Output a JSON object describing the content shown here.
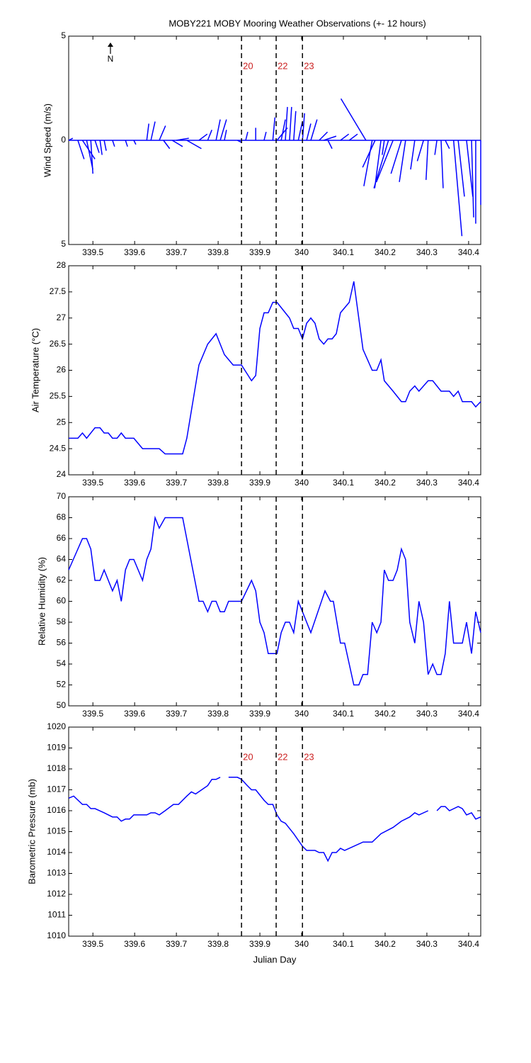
{
  "chart_data": [
    {
      "type": "stick",
      "title": "MOBY221 MOBY Mooring Weather Observations (+- 12 hours)",
      "y_label": "Wind Speed (m/s)",
      "north_label": "N",
      "x": [
        339.442,
        339.464,
        339.475,
        339.485,
        339.495,
        339.505,
        339.517,
        339.527,
        339.547,
        339.578,
        339.598,
        339.629,
        339.639,
        339.659,
        339.669,
        339.69,
        339.7,
        339.725,
        339.754,
        339.775,
        339.795,
        339.805,
        339.815,
        339.846,
        339.866,
        339.89,
        339.91,
        339.931,
        339.941,
        339.951,
        339.961,
        339.971,
        339.981,
        339.992,
        340.002,
        340.012,
        340.022,
        340.042,
        340.053,
        340.063,
        340.093,
        340.114,
        340.154,
        340.169,
        340.176,
        340.19,
        340.198,
        340.208,
        340.219,
        340.239,
        340.249,
        340.271,
        340.292,
        340.303,
        340.324,
        340.334,
        340.344,
        340.364,
        340.375,
        340.395,
        340.407,
        340.417,
        340.429
      ],
      "u": [
        0.2,
        0.3,
        0.6,
        0.3,
        0.1,
        0.2,
        0.1,
        0.1,
        0.1,
        0.1,
        0.1,
        0.1,
        0.2,
        0.3,
        0.3,
        0.5,
        0.6,
        0.7,
        0.4,
        0.2,
        0.2,
        0.3,
        0.1,
        0.2,
        0.1,
        0,
        0.1,
        0.1,
        0.5,
        0.2,
        0.1,
        0.1,
        0.1,
        0.2,
        0.1,
        0.2,
        0.3,
        0.4,
        0.6,
        0.2,
        0.4,
        0.4,
        -1.2,
        -0.4,
        -0.6,
        -0.3,
        -0.1,
        -0.7,
        -0.8,
        -0.5,
        -0.3,
        -0.2,
        -0.3,
        -0.1,
        -0.1,
        0.1,
        0.2,
        0.4,
        0.3,
        0.3,
        0.1,
        0,
        0
      ],
      "values": [
        0.1,
        -0.9,
        -0.9,
        -1.4,
        -1.6,
        -0.6,
        -0.7,
        -0.5,
        -0.3,
        -0.3,
        -0.2,
        0.8,
        0.9,
        0.7,
        -0.4,
        -0.3,
        0.1,
        -0.4,
        0.3,
        0.5,
        1.0,
        1.0,
        0.5,
        -0.1,
        0.4,
        0.6,
        0.4,
        1.1,
        0.6,
        1.0,
        1.6,
        1.6,
        1.4,
        0.9,
        1.3,
        0.8,
        1.0,
        0.4,
        0.2,
        -0.4,
        0.3,
        0.3,
        2.0,
        -2.2,
        -1.3,
        -2.3,
        -0.7,
        -2.3,
        -2.0,
        -1.6,
        -2.0,
        -1.4,
        -1.0,
        -1.9,
        -0.7,
        -2.3,
        -0.4,
        -4.6,
        -2.7,
        -2.7,
        -3.7,
        -4.0,
        -3.1
      ],
      "color": "#0000ff",
      "xlim": [
        339.442,
        340.429
      ],
      "xticks": [
        339.5,
        339.6,
        339.7,
        339.8,
        339.9,
        340,
        340.1,
        340.2,
        340.3,
        340.4
      ],
      "ylim": [
        -5,
        5
      ],
      "yticks": [
        {
          "value": -5,
          "label": "5"
        },
        0,
        {
          "value": 5,
          "label": "5"
        }
      ],
      "markers": [
        339.856,
        339.939,
        340.002
      ],
      "marker_labels": [
        "20",
        "22",
        "23"
      ],
      "marker_label_color": "#cc2222"
    },
    {
      "type": "line",
      "y_label": "Air Temperature (°C)",
      "x": [
        339.442,
        339.464,
        339.475,
        339.485,
        339.505,
        339.517,
        339.527,
        339.537,
        339.547,
        339.558,
        339.568,
        339.578,
        339.598,
        339.619,
        339.659,
        339.673,
        339.715,
        339.725,
        339.754,
        339.775,
        339.795,
        339.815,
        339.836,
        339.856,
        339.88,
        339.89,
        339.9,
        339.91,
        339.92,
        339.931,
        339.941,
        339.951,
        339.971,
        339.981,
        339.992,
        340.002,
        340.012,
        340.022,
        340.032,
        340.042,
        340.053,
        340.063,
        340.073,
        340.083,
        340.093,
        340.114,
        340.125,
        340.147,
        340.169,
        340.18,
        340.19,
        340.198,
        340.219,
        340.239,
        340.249,
        340.259,
        340.271,
        340.281,
        340.292,
        340.303,
        340.314,
        340.334,
        340.354,
        340.364,
        340.375,
        340.385,
        340.407,
        340.417,
        340.429
      ],
      "values": [
        24.7,
        24.7,
        24.8,
        24.7,
        24.9,
        24.9,
        24.8,
        24.8,
        24.7,
        24.7,
        24.8,
        24.7,
        24.7,
        24.5,
        24.5,
        24.4,
        24.4,
        24.7,
        26.1,
        26.5,
        26.7,
        26.3,
        26.1,
        26.1,
        25.8,
        25.9,
        26.8,
        27.1,
        27.1,
        27.3,
        27.3,
        27.2,
        27.0,
        26.8,
        26.8,
        26.6,
        26.9,
        27.0,
        26.9,
        26.6,
        26.5,
        26.6,
        26.6,
        26.7,
        27.1,
        27.3,
        27.7,
        26.4,
        26.0,
        26.0,
        26.2,
        25.8,
        25.6,
        25.4,
        25.4,
        25.6,
        25.7,
        25.6,
        25.7,
        25.8,
        25.8,
        25.6,
        25.6,
        25.5,
        25.6,
        25.4,
        25.4,
        25.3,
        25.4
      ],
      "color": "#0000ff",
      "xlim": [
        339.442,
        340.429
      ],
      "xticks": [
        339.5,
        339.6,
        339.7,
        339.8,
        339.9,
        340,
        340.1,
        340.2,
        340.3,
        340.4
      ],
      "ylim": [
        24,
        28
      ],
      "yticks": [
        24,
        24.5,
        25,
        25.5,
        26,
        26.5,
        27,
        27.5,
        28
      ],
      "markers": [
        339.856,
        339.939,
        340.002
      ]
    },
    {
      "type": "line",
      "y_label": "Relative Humidity (%)",
      "x": [
        339.442,
        339.464,
        339.475,
        339.485,
        339.495,
        339.505,
        339.517,
        339.527,
        339.547,
        339.558,
        339.568,
        339.578,
        339.588,
        339.598,
        339.619,
        339.629,
        339.639,
        339.649,
        339.659,
        339.673,
        339.715,
        339.754,
        339.764,
        339.775,
        339.785,
        339.795,
        339.805,
        339.815,
        339.825,
        339.856,
        339.88,
        339.89,
        339.9,
        339.91,
        339.92,
        339.941,
        339.951,
        339.961,
        339.971,
        339.981,
        339.992,
        340.002,
        340.012,
        340.022,
        340.056,
        340.069,
        340.076,
        340.093,
        340.103,
        340.114,
        340.125,
        340.137,
        340.147,
        340.158,
        340.169,
        340.18,
        340.19,
        340.198,
        340.208,
        340.219,
        340.229,
        340.239,
        340.249,
        340.259,
        340.271,
        340.281,
        340.292,
        340.303,
        340.314,
        340.324,
        340.334,
        340.344,
        340.354,
        340.364,
        340.385,
        340.395,
        340.407,
        340.417,
        340.429
      ],
      "values": [
        63,
        65,
        66,
        66,
        65,
        62,
        62,
        63,
        61,
        62,
        60,
        63,
        64,
        64,
        62,
        64,
        65,
        68,
        67,
        68,
        68,
        60,
        60,
        59,
        60,
        60,
        59,
        59,
        60,
        60,
        62,
        61,
        58,
        57,
        55,
        55,
        57,
        58,
        58,
        57,
        60,
        59,
        58,
        57,
        61,
        60,
        60,
        56,
        56,
        54,
        52,
        52,
        53,
        53,
        58,
        57,
        58,
        63,
        62,
        62,
        63,
        65,
        64,
        58,
        56,
        60,
        58,
        53,
        54,
        53,
        53,
        55,
        60,
        56,
        56,
        58,
        55,
        59,
        57
      ],
      "color": "#0000ff",
      "xlim": [
        339.442,
        340.429
      ],
      "xticks": [
        339.5,
        339.6,
        339.7,
        339.8,
        339.9,
        340,
        340.1,
        340.2,
        340.3,
        340.4
      ],
      "ylim": [
        50,
        70
      ],
      "yticks": [
        50,
        52,
        54,
        56,
        58,
        60,
        62,
        64,
        66,
        68,
        70
      ],
      "markers": [
        339.856,
        339.939,
        340.002
      ]
    },
    {
      "type": "line",
      "y_label": "Barometric Pressure (mb)",
      "x_label": "Julian Day",
      "x": [
        339.442,
        339.454,
        339.475,
        339.485,
        339.495,
        339.505,
        339.527,
        339.547,
        339.558,
        339.568,
        339.578,
        339.588,
        339.598,
        339.629,
        339.639,
        339.649,
        339.659,
        339.673,
        339.693,
        339.705,
        339.725,
        339.736,
        339.746,
        339.775,
        339.785,
        339.795,
        339.805,
        339.815,
        339.825,
        339.846,
        339.856,
        339.87,
        339.88,
        339.89,
        339.91,
        339.92,
        339.931,
        339.941,
        339.951,
        339.961,
        339.981,
        340.002,
        340.012,
        340.032,
        340.042,
        340.053,
        340.063,
        340.073,
        340.083,
        340.093,
        340.103,
        340.147,
        340.169,
        340.19,
        340.219,
        340.239,
        340.259,
        340.271,
        340.281,
        340.303,
        340.314,
        340.324,
        340.334,
        340.344,
        340.354,
        340.375,
        340.385,
        340.395,
        340.407,
        340.417,
        340.429
      ],
      "values": [
        1016.6,
        1016.7,
        1016.3,
        1016.3,
        1016.1,
        1016.1,
        1015.9,
        1015.7,
        1015.7,
        1015.5,
        1015.6,
        1015.6,
        1015.8,
        1015.8,
        1015.9,
        1015.9,
        1015.8,
        1016.0,
        1016.3,
        1016.3,
        1016.7,
        1016.9,
        1016.8,
        1017.2,
        1017.5,
        1017.5,
        1017.6,
        null,
        1017.6,
        1017.6,
        1017.5,
        1017.2,
        1017.0,
        1017.0,
        1016.5,
        1016.3,
        1016.3,
        1015.8,
        1015.5,
        1015.4,
        1014.9,
        1014.3,
        1014.1,
        1014.1,
        1014.0,
        1014.0,
        1013.6,
        1014.0,
        1014.0,
        1014.2,
        1014.1,
        1014.5,
        1014.5,
        1014.9,
        1015.2,
        1015.5,
        1015.7,
        1015.9,
        1015.8,
        1016.0,
        null,
        1016.0,
        1016.2,
        1016.2,
        1016.0,
        1016.2,
        1016.1,
        1015.8,
        1015.9,
        1015.6,
        1015.7
      ],
      "color": "#0000ff",
      "xlim": [
        339.442,
        340.429
      ],
      "xticks": [
        339.5,
        339.6,
        339.7,
        339.8,
        339.9,
        340,
        340.1,
        340.2,
        340.3,
        340.4
      ],
      "ylim": [
        1010,
        1020
      ],
      "yticks": [
        1010,
        1011,
        1012,
        1013,
        1014,
        1015,
        1016,
        1017,
        1018,
        1019,
        1020
      ],
      "markers": [
        339.856,
        339.939,
        340.002
      ],
      "marker_labels": [
        "20",
        "22",
        "23"
      ],
      "marker_label_color": "#cc2222"
    }
  ]
}
